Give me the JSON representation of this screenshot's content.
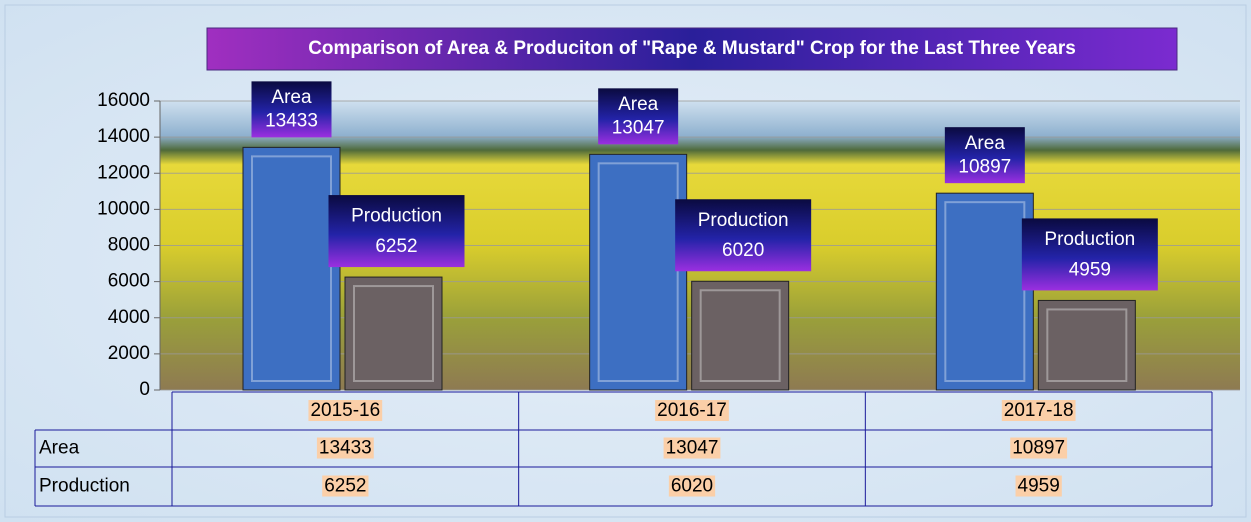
{
  "chart_data": {
    "type": "bar",
    "title": "Comparison of Area & Produciton of  \"Rape & Mustard\" Crop  for the Last Three Years",
    "categories": [
      "2015-16",
      "2016-17",
      "2017-18"
    ],
    "series": [
      {
        "name": "Area",
        "color": "#3d6fc2",
        "values": [
          13433,
          13047,
          10897
        ]
      },
      {
        "name": "Production",
        "color": "#6b6163",
        "values": [
          6252,
          6020,
          4959
        ]
      }
    ],
    "ylim": [
      0,
      16000
    ],
    "yticks": [
      0,
      2000,
      4000,
      6000,
      8000,
      10000,
      12000,
      14000,
      16000
    ],
    "grid": true
  }
}
